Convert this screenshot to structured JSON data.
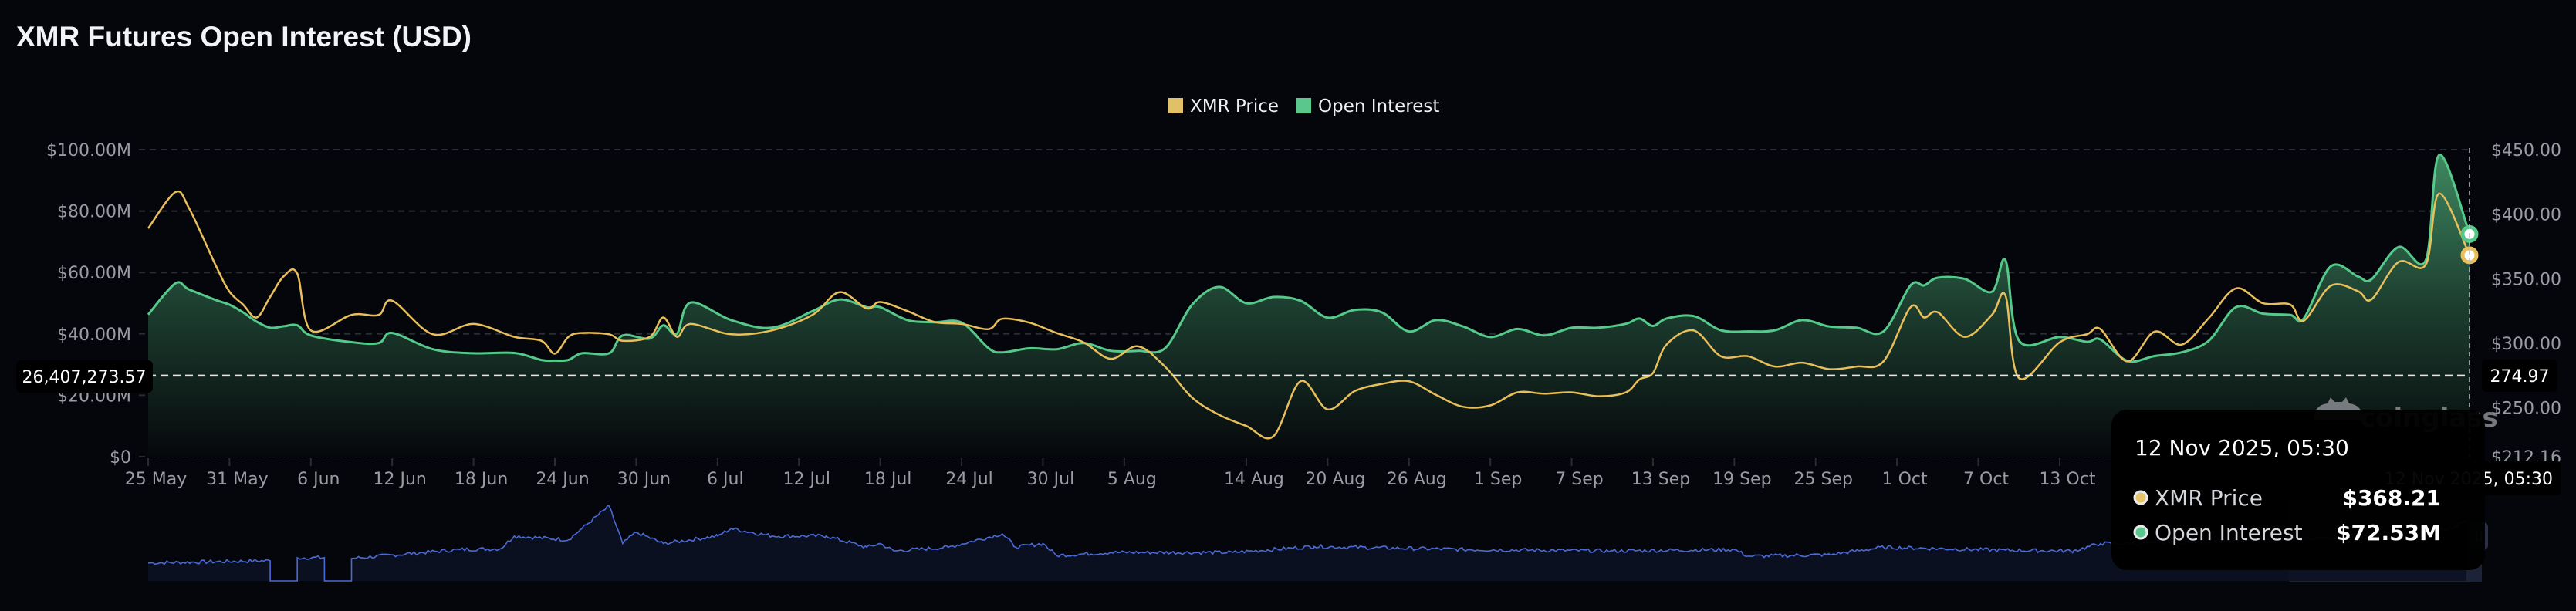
{
  "title": "XMR Futures Open Interest (USD)",
  "colors": {
    "background": "#05060b",
    "price": "#e8bf5a",
    "open_interest": "#55c98a",
    "navigator_line": "#4a6ad6"
  },
  "legend": [
    {
      "label": "XMR Price",
      "color": "#e2c067"
    },
    {
      "label": "Open Interest",
      "color": "#5ac88d"
    }
  ],
  "watermark": "coinglass",
  "crosshair": {
    "left_value": "26,407,273.57",
    "right_value": "274.97",
    "date_label": "12 Nov 2025, 05:30"
  },
  "tooltip": {
    "date": "12 Nov 2025, 05:30",
    "rows": [
      {
        "label": "XMR Price",
        "value": "$368.21",
        "color": "#e8c46a"
      },
      {
        "label": "Open Interest",
        "value": "$72.53M",
        "color": "#5ac88d"
      }
    ]
  },
  "chart_data": {
    "type": "line",
    "title": "XMR Futures Open Interest (USD)",
    "grid": true,
    "legend_position": "top-center",
    "xlim": [
      "2025-05-25 00:00",
      "2025-11-12 05:30"
    ],
    "y_left": {
      "lim": [
        0,
        100000000
      ],
      "ticks": [
        "$0",
        "$20.00M",
        "$40.00M",
        "$60.00M",
        "$80.00M",
        "$100.00M"
      ],
      "tick_values": [
        0,
        20,
        40,
        60,
        80,
        100
      ],
      "unit": "M USD"
    },
    "y_right": {
      "lim": [
        212.16,
        450
      ],
      "ticks": [
        "$212.16",
        "$250.00",
        "$300.00",
        "$350.00",
        "$400.00",
        "$450.00"
      ],
      "tick_values": [
        212.16,
        250,
        300,
        350,
        400,
        450
      ]
    },
    "x_ticks": [
      {
        "label": "25 May",
        "date": "2025-05-25"
      },
      {
        "label": "31 May",
        "date": "2025-05-31"
      },
      {
        "label": "6 Jun",
        "date": "2025-06-06"
      },
      {
        "label": "12 Jun",
        "date": "2025-06-12"
      },
      {
        "label": "18 Jun",
        "date": "2025-06-18"
      },
      {
        "label": "24 Jun",
        "date": "2025-06-24"
      },
      {
        "label": "30 Jun",
        "date": "2025-06-30"
      },
      {
        "label": "6 Jul",
        "date": "2025-07-06"
      },
      {
        "label": "12 Jul",
        "date": "2025-07-12"
      },
      {
        "label": "18 Jul",
        "date": "2025-07-18"
      },
      {
        "label": "24 Jul",
        "date": "2025-07-24"
      },
      {
        "label": "30 Jul",
        "date": "2025-07-30"
      },
      {
        "label": "5 Aug",
        "date": "2025-08-05"
      },
      {
        "label": "14 Aug",
        "date": "2025-08-14"
      },
      {
        "label": "20 Aug",
        "date": "2025-08-20"
      },
      {
        "label": "26 Aug",
        "date": "2025-08-26"
      },
      {
        "label": "1 Sep",
        "date": "2025-09-01"
      },
      {
        "label": "7 Sep",
        "date": "2025-09-07"
      },
      {
        "label": "13 Sep",
        "date": "2025-09-13"
      },
      {
        "label": "19 Sep",
        "date": "2025-09-19"
      },
      {
        "label": "25 Sep",
        "date": "2025-09-25"
      },
      {
        "label": "1 Oct",
        "date": "2025-10-01"
      },
      {
        "label": "7 Oct",
        "date": "2025-10-07"
      },
      {
        "label": "13 Oct",
        "date": "2025-10-13"
      }
    ],
    "x": [
      "2025-05-25",
      "2025-05-27",
      "2025-05-28",
      "2025-05-30",
      "2025-05-31",
      "2025-06-01",
      "2025-06-02",
      "2025-06-03",
      "2025-06-04",
      "2025-06-05",
      "2025-06-06",
      "2025-06-09",
      "2025-06-11",
      "2025-06-12",
      "2025-06-15",
      "2025-06-18",
      "2025-06-21",
      "2025-06-23",
      "2025-06-24",
      "2025-06-25",
      "2025-06-26",
      "2025-06-28",
      "2025-06-29",
      "2025-07-01",
      "2025-07-02",
      "2025-07-03",
      "2025-07-04",
      "2025-07-07",
      "2025-07-10",
      "2025-07-13",
      "2025-07-15",
      "2025-07-17",
      "2025-07-18",
      "2025-07-20",
      "2025-07-22",
      "2025-07-24",
      "2025-07-26",
      "2025-07-27",
      "2025-07-29",
      "2025-07-31",
      "2025-08-02",
      "2025-08-04",
      "2025-08-06",
      "2025-08-08",
      "2025-08-10",
      "2025-08-12",
      "2025-08-14",
      "2025-08-16",
      "2025-08-18",
      "2025-08-20",
      "2025-08-22",
      "2025-08-24",
      "2025-08-26",
      "2025-08-28",
      "2025-08-30",
      "2025-09-01",
      "2025-09-03",
      "2025-09-05",
      "2025-09-07",
      "2025-09-09",
      "2025-09-11",
      "2025-09-12",
      "2025-09-13",
      "2025-09-14",
      "2025-09-16",
      "2025-09-18",
      "2025-09-20",
      "2025-09-22",
      "2025-09-24",
      "2025-09-26",
      "2025-09-28",
      "2025-09-30",
      "2025-10-02",
      "2025-10-03",
      "2025-10-04",
      "2025-10-06",
      "2025-10-08",
      "2025-10-09",
      "2025-10-10",
      "2025-10-13",
      "2025-10-15",
      "2025-10-16",
      "2025-10-18",
      "2025-10-20",
      "2025-10-22",
      "2025-10-24",
      "2025-10-26",
      "2025-10-28",
      "2025-10-30",
      "2025-10-31",
      "2025-11-02",
      "2025-11-04",
      "2025-11-05",
      "2025-11-07",
      "2025-11-09",
      "2025-11-10",
      "2025-11-12 05:30"
    ],
    "series": [
      {
        "name": "XMR Price",
        "axis": "right",
        "values": [
          389,
          417,
          405,
          360,
          340,
          330,
          320,
          336,
          352,
          354,
          310,
          322,
          322,
          333,
          307,
          315,
          305,
          302,
          292,
          305,
          308,
          307,
          302,
          305,
          320,
          305,
          315,
          307,
          310,
          322,
          339.6,
          327,
          332,
          325,
          316.5,
          315,
          311,
          319,
          316,
          308,
          300.8,
          288,
          297.7,
          282,
          258,
          244.6,
          236,
          228,
          270.6,
          248.8,
          263,
          268.5,
          270.6,
          260,
          250.8,
          251.9,
          262,
          261,
          262,
          259,
          262,
          272,
          277,
          299,
          310,
          290,
          290,
          282,
          285,
          280,
          282,
          286,
          328,
          320,
          324,
          305,
          322,
          337,
          273,
          300.8,
          307,
          311,
          286,
          309,
          299,
          319.6,
          342.5,
          331,
          330,
          317.5,
          344.6,
          340.4,
          334,
          363,
          361,
          416,
          368.21
        ]
      },
      {
        "name": "Open Interest",
        "axis": "left",
        "unit": "M USD",
        "values": [
          46.3,
          56.4,
          54.5,
          51,
          49.5,
          47,
          44,
          42,
          42.5,
          42.8,
          39.5,
          37.3,
          37,
          40.3,
          35,
          33.7,
          33.8,
          31.5,
          31.3,
          31.5,
          33.7,
          33.7,
          39.5,
          38.5,
          42.8,
          40,
          50.2,
          44.5,
          42,
          47.4,
          51.2,
          48.7,
          48.7,
          44.5,
          43.8,
          43.7,
          35.3,
          34,
          35.3,
          35,
          37,
          34.5,
          34.5,
          35.3,
          49.5,
          55.3,
          50,
          52,
          50.8,
          45.3,
          47.8,
          47,
          40.8,
          44.5,
          42.4,
          39,
          41.6,
          39.5,
          42,
          42,
          43.3,
          45,
          42.6,
          45,
          45.8,
          41.2,
          40.8,
          41.2,
          44.5,
          42.4,
          42,
          40.8,
          55.8,
          55.8,
          58.3,
          57.9,
          53.7,
          64,
          37.8,
          39,
          37.4,
          38.2,
          31.2,
          32.8,
          34,
          37.8,
          48.7,
          46.6,
          46.2,
          45,
          62,
          58.7,
          57.8,
          68.3,
          64,
          98.3,
          72.53
        ]
      }
    ],
    "navigator": {
      "selected_range": [
        "2025-10-30",
        "2025-11-12"
      ],
      "x": [
        "2025-05-25",
        "2025-06-03",
        "2025-06-03",
        "2025-06-05",
        "2025-06-05",
        "2025-06-07",
        "2025-06-07",
        "2025-06-09",
        "2025-06-09",
        "2025-06-17",
        "2025-06-20",
        "2025-06-21",
        "2025-06-25",
        "2025-06-26",
        "2025-06-28",
        "2025-06-29",
        "2025-06-30",
        "2025-07-02",
        "2025-07-06",
        "2025-07-07",
        "2025-07-10",
        "2025-07-14",
        "2025-07-17",
        "2025-07-18",
        "2025-07-19",
        "2025-07-23",
        "2025-07-27",
        "2025-07-28",
        "2025-07-30",
        "2025-07-31",
        "2025-08-04",
        "2025-08-13",
        "2025-08-19",
        "2025-08-30",
        "2025-09-10",
        "2025-09-19",
        "2025-09-20",
        "2025-09-26",
        "2025-09-30",
        "2025-10-09",
        "2025-10-14",
        "2025-10-16",
        "2025-10-20",
        "2025-10-29",
        "2025-11-06",
        "2025-11-11",
        "2025-11-12"
      ],
      "relative_level": [
        0.24,
        0.27,
        0,
        0,
        0.31,
        0.31,
        0,
        0,
        0.3,
        0.42,
        0.43,
        0.6,
        0.55,
        0.7,
        1.0,
        0.5,
        0.65,
        0.5,
        0.6,
        0.7,
        0.6,
        0.6,
        0.45,
        0.5,
        0.4,
        0.45,
        0.63,
        0.45,
        0.5,
        0.34,
        0.38,
        0.38,
        0.46,
        0.42,
        0.4,
        0.42,
        0.33,
        0.35,
        0.45,
        0.41,
        0.4,
        0.5,
        0.5,
        0.55,
        0.6,
        0.7,
        0.8
      ]
    }
  }
}
